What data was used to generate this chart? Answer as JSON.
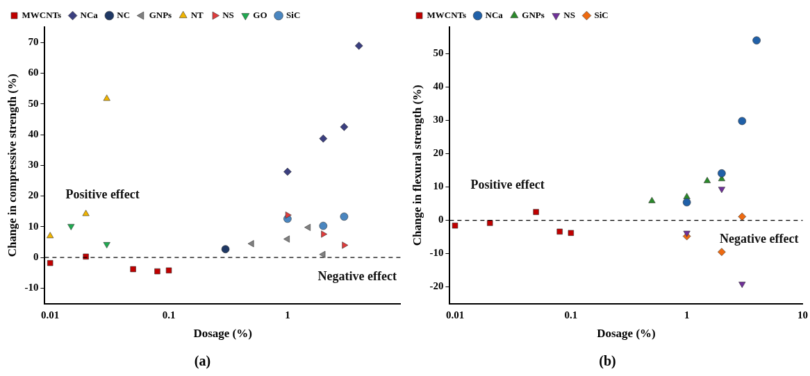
{
  "chart_data": [
    {
      "type": "scatter",
      "title": "(a)",
      "xlabel": "Dosage (%)",
      "ylabel": "Change in compressive strength (%)",
      "log": "x",
      "xlim": [
        0.009,
        9
      ],
      "xticks": [
        0.01,
        0.1,
        1
      ],
      "ylim": [
        -15,
        75
      ],
      "yticks": [
        -10,
        0,
        10,
        20,
        30,
        40,
        50,
        60,
        70
      ],
      "grid": false,
      "legend": "top left",
      "ref_lines": [
        {
          "axis": "y",
          "value": 0,
          "line_style": "dashed"
        }
      ],
      "annotations": [
        "Positive effect",
        "Negative effect"
      ],
      "series": [
        {
          "name": "MWCNTs",
          "color": "#c00000",
          "marker": "square",
          "x": [
            0.01,
            0.02,
            0.05,
            0.08,
            0.1
          ],
          "values": [
            -1.8,
            0.3,
            -3.8,
            -4.5,
            -4.2
          ]
        },
        {
          "name": "NCa",
          "color": "#3b3f7f",
          "marker": "diamond",
          "x": [
            1,
            2,
            3,
            4
          ],
          "values": [
            27.9,
            38.7,
            42.5,
            68.9
          ]
        },
        {
          "name": "NC",
          "color": "#1f3864",
          "marker": "circle",
          "x": [
            0.3
          ],
          "values": [
            2.7
          ]
        },
        {
          "name": "GNPs",
          "color": "#808080",
          "marker": "triangle-left",
          "x": [
            0.5,
            1,
            1.5,
            2
          ],
          "values": [
            4.5,
            6,
            9.8,
            1
          ]
        },
        {
          "name": "NT",
          "color": "#f0b400",
          "marker": "triangle",
          "x": [
            0.01,
            0.02,
            0.03
          ],
          "values": [
            7,
            14.2,
            51.7
          ]
        },
        {
          "name": "NS",
          "color": "#e03c3c",
          "marker": "triangle-right",
          "x": [
            1,
            2,
            3
          ],
          "values": [
            13.8,
            7.6,
            4
          ]
        },
        {
          "name": "GO",
          "color": "#1faa50",
          "marker": "triangle-down",
          "x": [
            0.015,
            0.03
          ],
          "values": [
            10.2,
            4.3
          ]
        },
        {
          "name": "SiC",
          "color": "#4a86c0",
          "marker": "circle",
          "x": [
            1,
            2,
            3
          ],
          "values": [
            12.6,
            10.3,
            13.3
          ]
        }
      ]
    },
    {
      "type": "scatter",
      "title": "(b)",
      "xlabel": "Dosage (%)",
      "ylabel": "Change in flexural strength (%)",
      "log": "x",
      "xlim": [
        0.009,
        10
      ],
      "xticks": [
        0.01,
        0.1,
        1,
        10
      ],
      "ylim": [
        -25,
        58
      ],
      "yticks": [
        -20,
        -10,
        0,
        10,
        20,
        30,
        40,
        50
      ],
      "grid": false,
      "legend": "top left",
      "ref_lines": [
        {
          "axis": "y",
          "value": 0,
          "line_style": "dashed"
        }
      ],
      "annotations": [
        "Positive effect",
        "Negative effect"
      ],
      "series": [
        {
          "name": "MWCNTs",
          "color": "#c00000",
          "marker": "square",
          "x": [
            0.01,
            0.02,
            0.05,
            0.08,
            0.1
          ],
          "values": [
            -1.6,
            -0.8,
            2.5,
            -3.4,
            -3.8
          ]
        },
        {
          "name": "NCa",
          "color": "#2060a8",
          "marker": "circle",
          "x": [
            1,
            2,
            3,
            4
          ],
          "values": [
            5.4,
            14.1,
            29.8,
            54
          ]
        },
        {
          "name": "GNPs",
          "color": "#2a8a2a",
          "marker": "triangle",
          "x": [
            0.5,
            1,
            1.5,
            2
          ],
          "values": [
            5.8,
            7,
            11.8,
            12.4
          ]
        },
        {
          "name": "NS",
          "color": "#70309a",
          "marker": "triangle-down",
          "x": [
            1,
            2,
            3
          ],
          "values": [
            -3.8,
            9.4,
            -19.1
          ]
        },
        {
          "name": "SiC",
          "color": "#ee6a10",
          "marker": "diamond",
          "x": [
            1,
            2,
            3
          ],
          "values": [
            -4.8,
            -9.5,
            1.1
          ]
        }
      ]
    }
  ]
}
